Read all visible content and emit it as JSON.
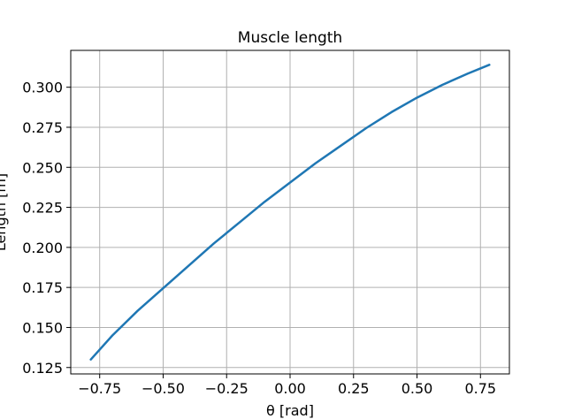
{
  "chart_data": {
    "type": "line",
    "title": "Muscle length",
    "xlabel": "θ [rad]",
    "ylabel": "Length [m]",
    "xlim": [
      -0.864,
      0.864
    ],
    "ylim": [
      0.121,
      0.323
    ],
    "xticks": [
      -0.75,
      -0.5,
      -0.25,
      0.0,
      0.25,
      0.5,
      0.75
    ],
    "xtick_labels": [
      "−0.75",
      "−0.50",
      "−0.25",
      "0.00",
      "0.25",
      "0.50",
      "0.75"
    ],
    "yticks": [
      0.125,
      0.15,
      0.175,
      0.2,
      0.225,
      0.25,
      0.275,
      0.3
    ],
    "ytick_labels": [
      "0.125",
      "0.150",
      "0.175",
      "0.200",
      "0.225",
      "0.250",
      "0.275",
      "0.300"
    ],
    "grid": true,
    "series": [
      {
        "color": "#1f77b4",
        "x": [
          -0.785,
          -0.7,
          -0.6,
          -0.5,
          -0.4,
          -0.3,
          -0.2,
          -0.1,
          0.0,
          0.1,
          0.2,
          0.3,
          0.4,
          0.5,
          0.6,
          0.7,
          0.785
        ],
        "y": [
          0.13,
          0.145,
          0.1605,
          0.1745,
          0.1885,
          0.2025,
          0.2155,
          0.2285,
          0.2405,
          0.2525,
          0.2635,
          0.2745,
          0.2845,
          0.2935,
          0.3015,
          0.3085,
          0.314
        ]
      }
    ]
  }
}
